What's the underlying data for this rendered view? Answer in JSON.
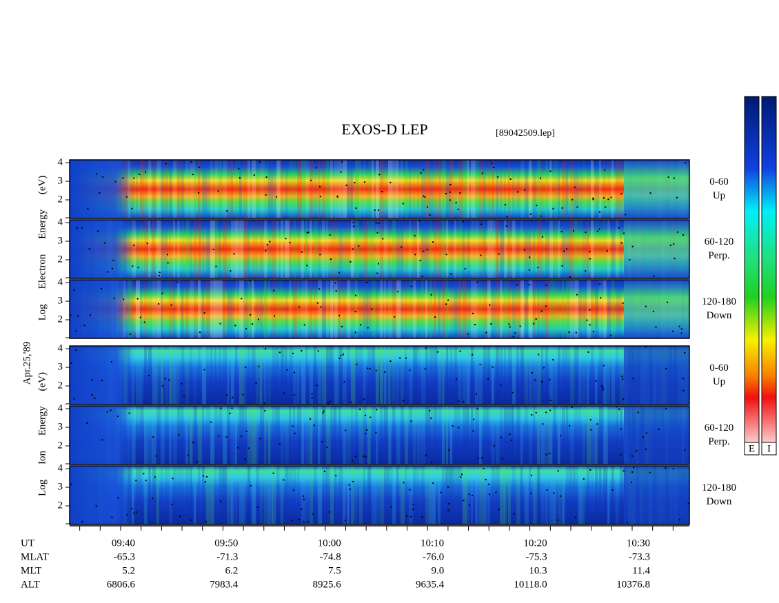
{
  "title": "EXOS-D LEP",
  "file": "[89042509.lep]",
  "date": "Apr.25,'89",
  "electron_axis_label": "Log Electron Energy (eV)",
  "ion_axis_label": "Log Ion Energy (eV)",
  "energy_axis": {
    "ylim": [
      1,
      4.15
    ],
    "yticks": [
      2,
      3,
      4
    ]
  },
  "electron_panels": [
    {
      "pitch_angle": "0-60",
      "direction": "Up"
    },
    {
      "pitch_angle": "60-120",
      "direction": "Perp."
    },
    {
      "pitch_angle": "120-180",
      "direction": "Down"
    }
  ],
  "ion_panels": [
    {
      "pitch_angle": "0-60",
      "direction": "Up"
    },
    {
      "pitch_angle": "60-120",
      "direction": "Perp."
    },
    {
      "pitch_angle": "120-180",
      "direction": "Down"
    }
  ],
  "colorbar_labels": [
    "E",
    "I"
  ],
  "orbit_table": {
    "row_labels": [
      "UT",
      "MLAT",
      "MLT",
      "ALT"
    ],
    "rows": [
      [
        "09:40",
        "09:50",
        "10:00",
        "10:10",
        "10:20",
        "10:30"
      ],
      [
        "-65.3",
        "-71.3",
        "-74.8",
        "-76.0",
        "-75.3",
        "-73.3"
      ],
      [
        "5.2",
        "6.2",
        "7.5",
        "9.0",
        "10.3",
        "11.4"
      ],
      [
        "6806.6",
        "7983.4",
        "8925.6",
        "9635.4",
        "10118.0",
        "10376.8"
      ]
    ]
  }
}
